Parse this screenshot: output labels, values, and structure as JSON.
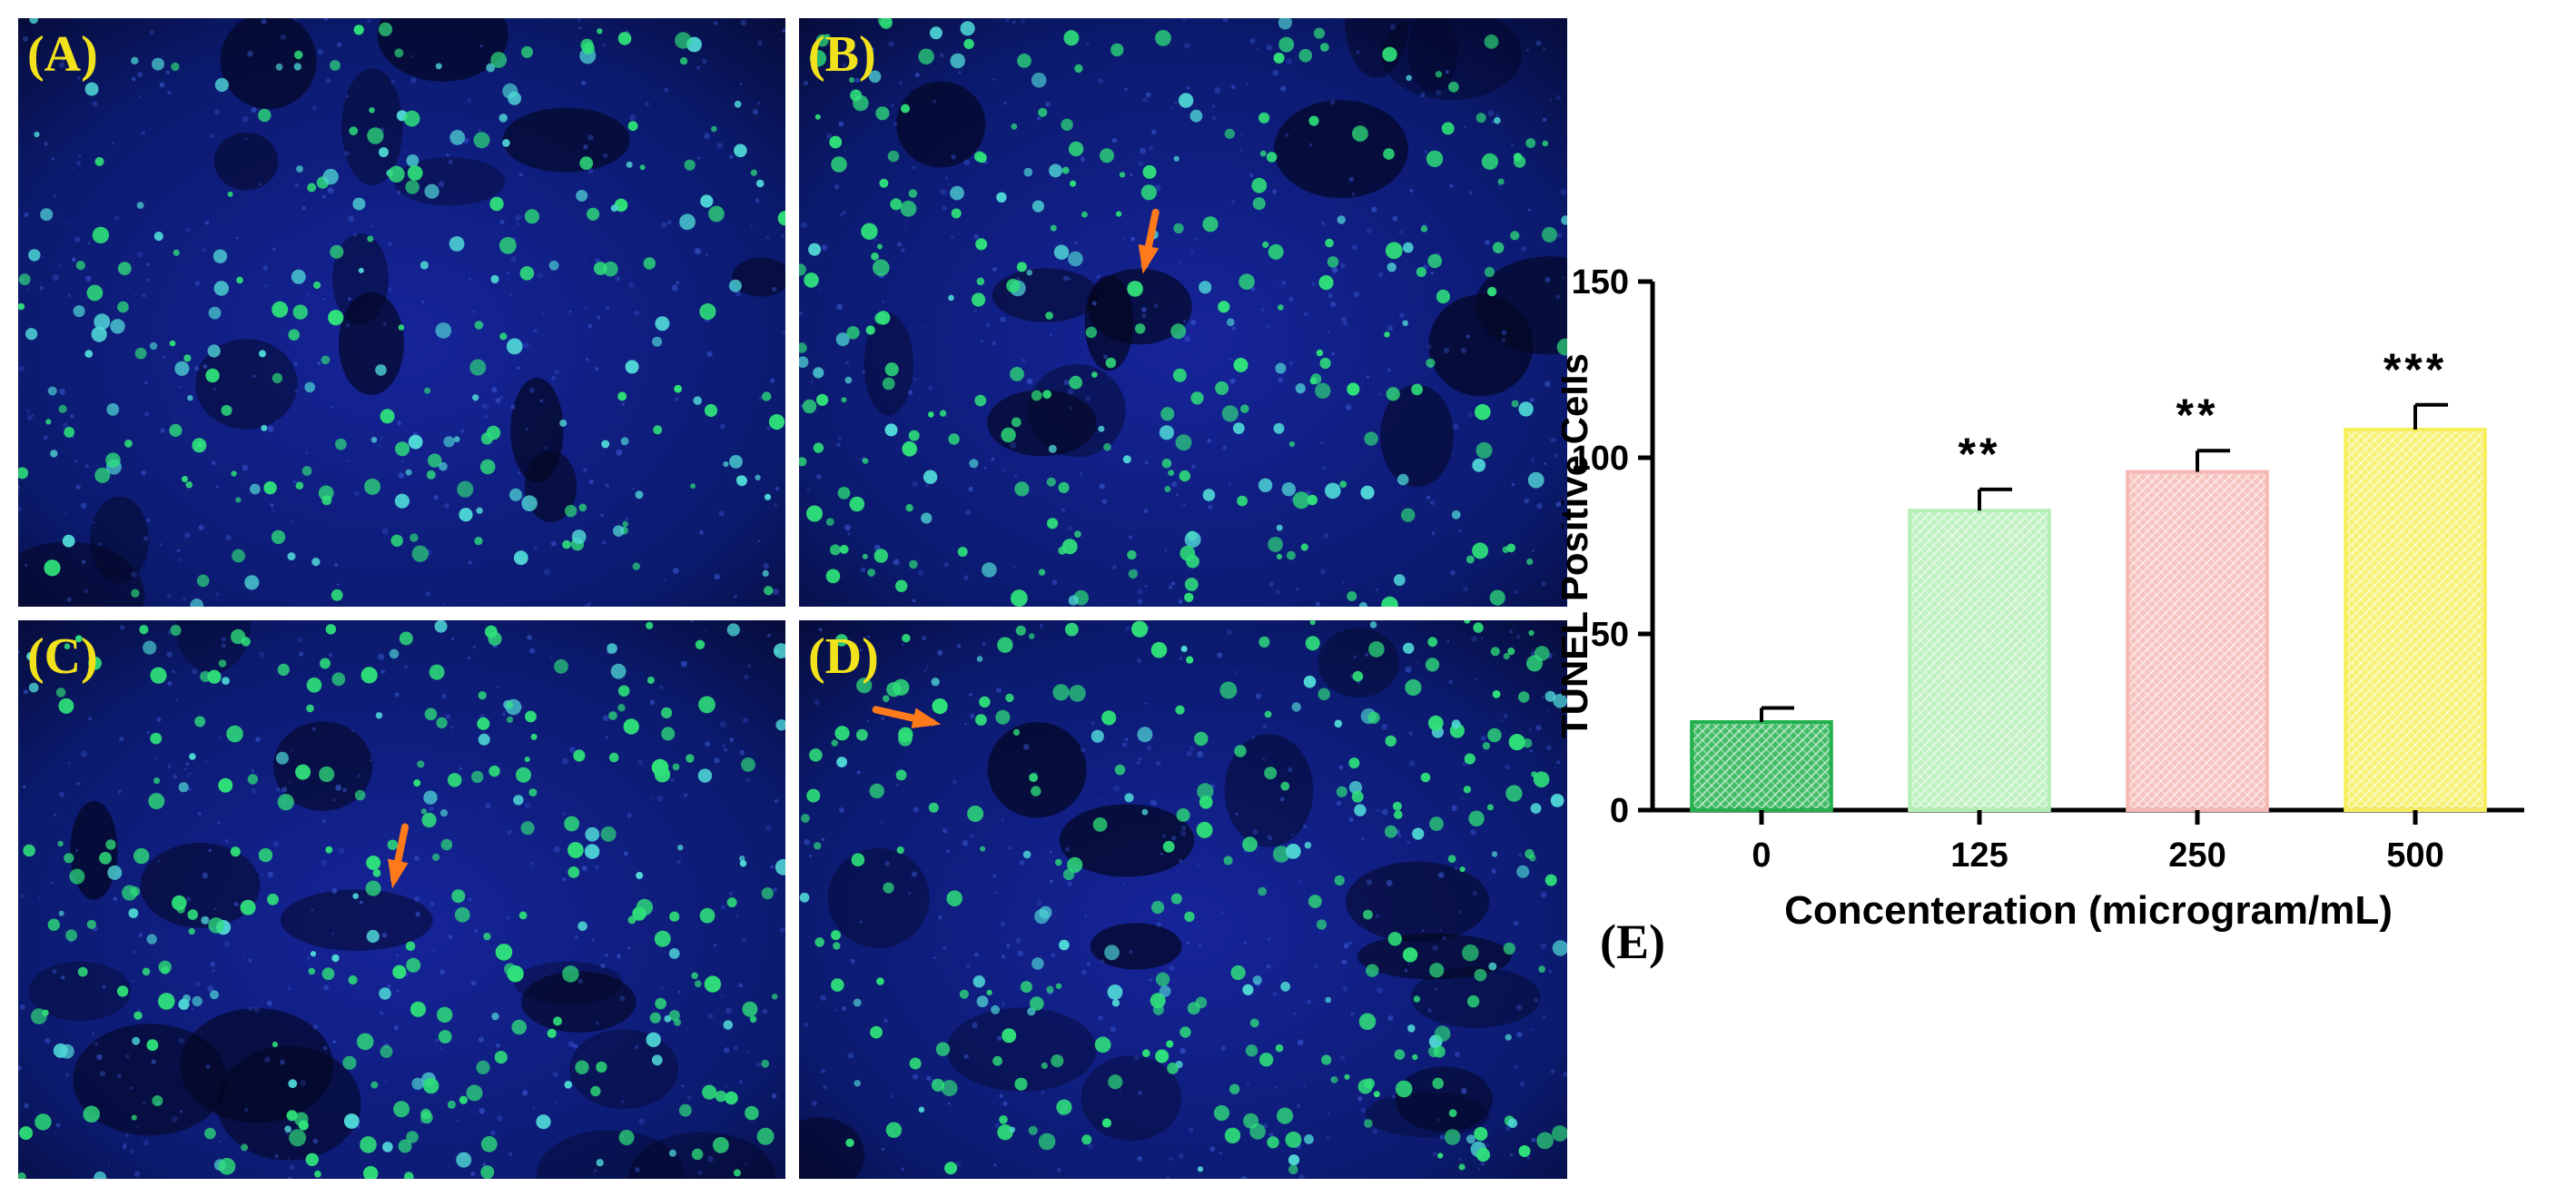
{
  "panels": [
    {
      "label": "(A)",
      "arrow": null
    },
    {
      "label": "(B)",
      "arrow": "down"
    },
    {
      "label": "(C)",
      "arrow": "down"
    },
    {
      "label": "(D)",
      "arrow": "right"
    }
  ],
  "panel_e_label": "(E)",
  "colors": {
    "background": "#0b1a6e",
    "nucleus_green": "#2fe07a",
    "nucleus_cyan": "#4fd6d6",
    "arrow": "#ff7a1a",
    "label_yellow": "#f2e21c"
  },
  "chart_data": {
    "type": "bar",
    "categories": [
      "0",
      "125",
      "250",
      "500"
    ],
    "values": [
      25,
      85,
      96,
      108
    ],
    "errors": [
      4,
      6,
      6,
      7
    ],
    "significance": [
      "",
      "**",
      "**",
      "***"
    ],
    "bar_colors": [
      "#22b14c",
      "#b5efb6",
      "#f4b9b4",
      "#f6ee5a"
    ],
    "xlabel": "Concenteration (microgram/mL)",
    "ylabel": "TUNEL Positive Cells",
    "ylim": [
      0,
      150
    ],
    "yticks": [
      0,
      50,
      100,
      150
    ],
    "grid": false
  }
}
